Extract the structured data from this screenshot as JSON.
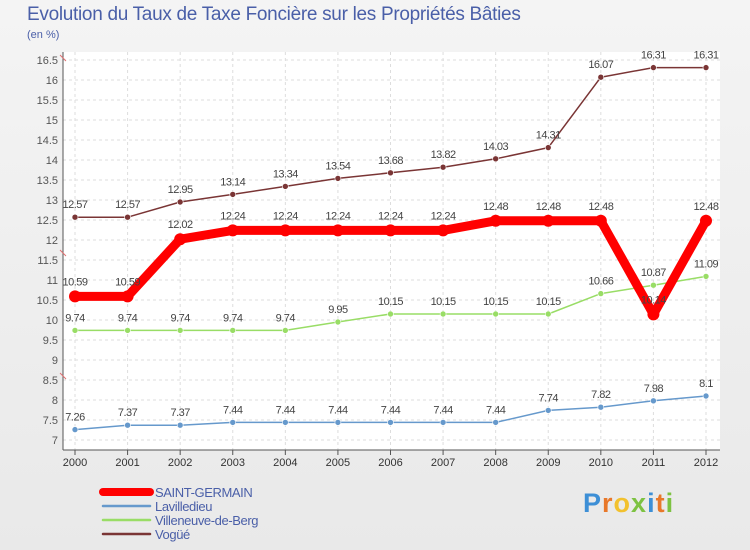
{
  "chart_data": {
    "type": "line",
    "title": "Evolution du Taux de Taxe Foncière sur les Propriétés Bâties",
    "subtitle": "(en %)",
    "xlabel": "",
    "ylabel": "",
    "categories": [
      "2000",
      "2001",
      "2002",
      "2003",
      "2004",
      "2005",
      "2006",
      "2007",
      "2008",
      "2009",
      "2010",
      "2011",
      "2012"
    ],
    "ylim": [
      7,
      16.5
    ],
    "yticks": [
      7,
      7.5,
      8,
      8.5,
      9,
      9.5,
      10,
      10.5,
      11,
      11.5,
      12,
      12.5,
      13,
      13.5,
      14,
      14.5,
      15,
      15.5,
      16,
      16.5
    ],
    "ytick_labels": [
      "7",
      "7.5",
      "8",
      "8.5",
      "9",
      "9.5",
      "10",
      "10.5",
      "11",
      "11.5",
      "12",
      "12.5",
      "13",
      "13.5",
      "14",
      "14.5",
      "15",
      "15.5",
      "16",
      "16.5"
    ],
    "grid": true,
    "legend_position": "bottom-left",
    "series": [
      {
        "name": "SAINT-GERMAIN",
        "color": "#ff0000",
        "values": [
          10.59,
          10.59,
          12.02,
          12.24,
          12.24,
          12.24,
          12.24,
          12.24,
          12.48,
          12.48,
          12.48,
          10.14,
          12.48
        ],
        "labels": [
          "10.59",
          "10.59",
          "12.02",
          "12.24",
          "12.24",
          "12.24",
          "12.24",
          "12.24",
          "12.48",
          "12.48",
          "12.48",
          "10.14",
          "12.48"
        ]
      },
      {
        "name": "Lavilledieu",
        "color": "#6699cc",
        "values": [
          7.26,
          7.37,
          7.37,
          7.44,
          7.44,
          7.44,
          7.44,
          7.44,
          7.44,
          7.74,
          7.82,
          7.98,
          8.1
        ],
        "labels": [
          "7.26",
          "7.37",
          "7.37",
          "7.44",
          "7.44",
          "7.44",
          "7.44",
          "7.44",
          "7.44",
          "7.74",
          "7.82",
          "7.98",
          "8.1"
        ]
      },
      {
        "name": "Villeneuve-de-Berg",
        "color": "#99dd66",
        "values": [
          9.74,
          9.74,
          9.74,
          9.74,
          9.74,
          9.95,
          10.15,
          10.15,
          10.15,
          10.15,
          10.66,
          10.87,
          11.09
        ],
        "labels": [
          "9.74",
          "9.74",
          "9.74",
          "9.74",
          "9.74",
          "9.95",
          "10.15",
          "10.15",
          "10.15",
          "10.15",
          "10.66",
          "10.87",
          "11.09"
        ]
      },
      {
        "name": "Vogüé",
        "color": "#7a3535",
        "values": [
          12.57,
          12.57,
          12.95,
          13.14,
          13.34,
          13.54,
          13.68,
          13.82,
          14.03,
          14.31,
          16.07,
          16.31,
          16.31
        ],
        "labels": [
          "12.57",
          "12.57",
          "12.95",
          "13.14",
          "13.34",
          "13.54",
          "13.68",
          "13.82",
          "14.03",
          "14.31",
          "16.07",
          "16.31",
          "16.31"
        ]
      }
    ]
  },
  "logo": {
    "letters": [
      "P",
      "r",
      "o",
      "x",
      "i",
      "t",
      "i"
    ],
    "colors": [
      "#3d8fd6",
      "#e8782a",
      "#f2c12e",
      "#7dc242",
      "#3d8fd6",
      "#e8782a",
      "#7dc242"
    ]
  }
}
